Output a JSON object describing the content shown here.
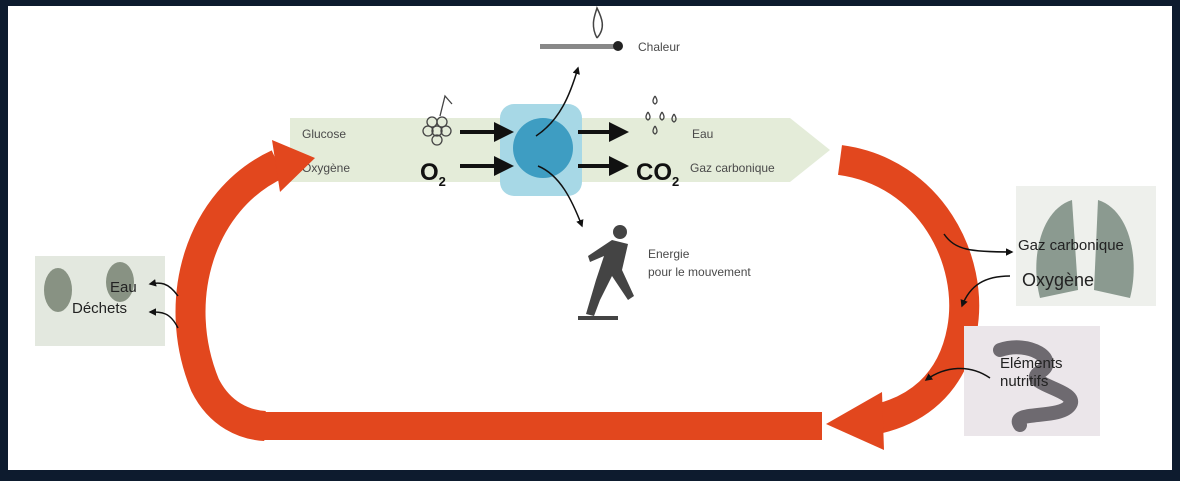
{
  "heat": {
    "label": "Chaleur"
  },
  "inputs": {
    "glucose": "Glucose",
    "oxygen": "Oxygène",
    "o2": {
      "base": "O",
      "sub": "2"
    }
  },
  "outputs": {
    "water": "Eau",
    "co2": {
      "base": "CO",
      "sub": "2"
    },
    "co2_label": "Gaz carbonique"
  },
  "energy": {
    "lines": [
      "Energie",
      "pour le mouvement"
    ]
  },
  "lungs": {
    "out": "Gaz carbonique",
    "in": "Oxygène"
  },
  "intestine": {
    "lines": [
      "Eléments",
      "nutritifs"
    ]
  },
  "kidney": {
    "lines": [
      "Eau",
      "Déchets"
    ]
  }
}
